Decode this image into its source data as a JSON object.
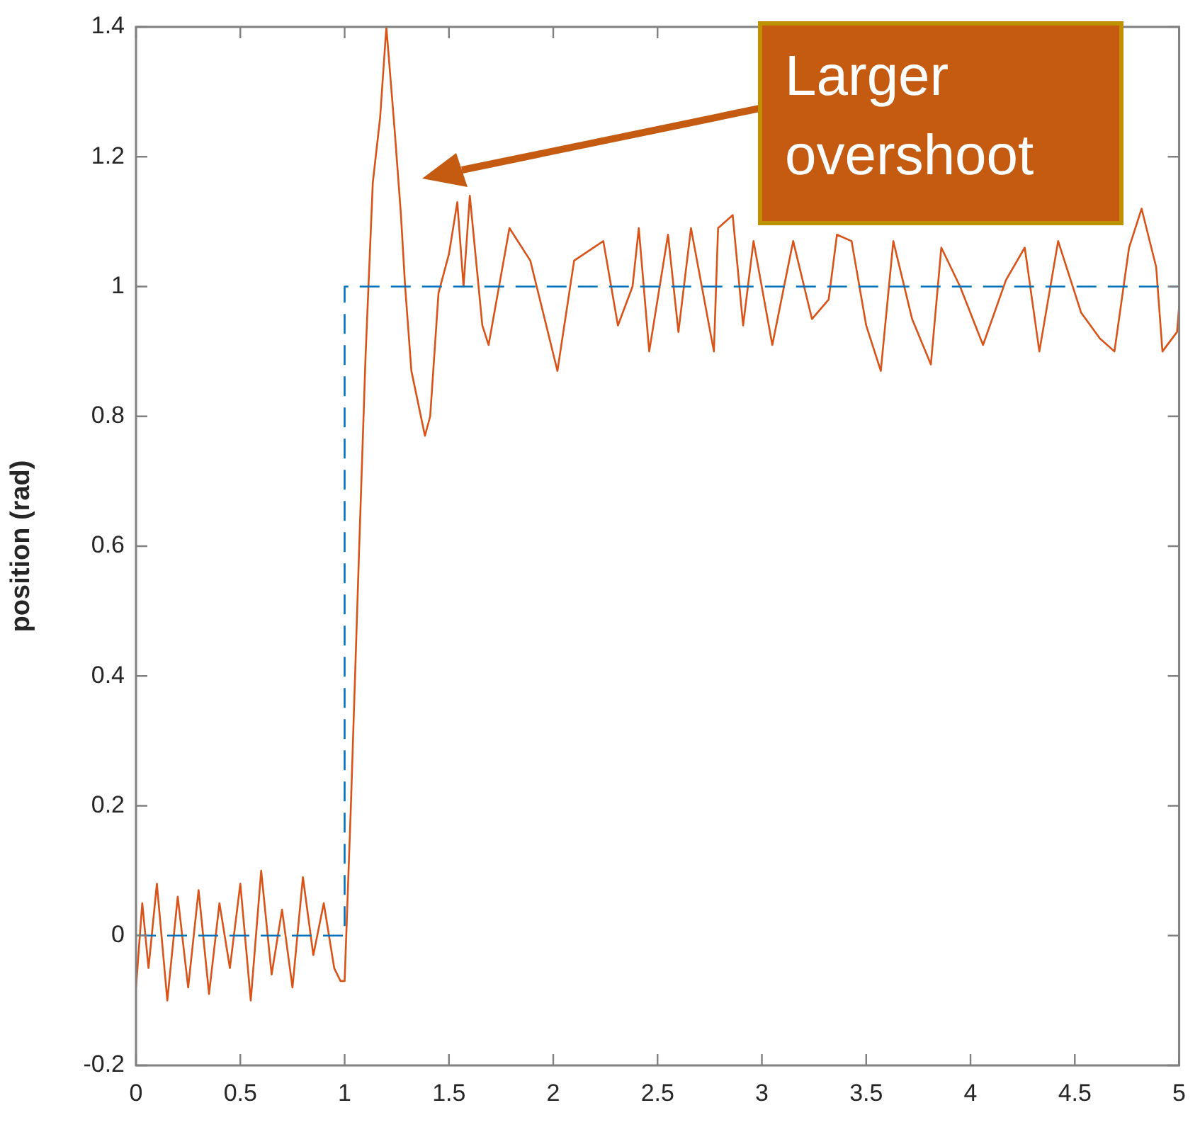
{
  "chart_data": {
    "type": "line",
    "ylabel": "position (rad)",
    "xlim": [
      0,
      5
    ],
    "xticks": [
      0,
      0.5,
      1,
      1.5,
      2,
      2.5,
      3,
      3.5,
      4,
      4.5,
      5
    ],
    "ylim": [
      -0.2,
      1.4
    ],
    "yticks": [
      -0.2,
      0,
      0.2,
      0.4,
      0.6,
      0.8,
      1,
      1.2,
      1.4
    ],
    "grid": false,
    "legend": false,
    "marker": "none",
    "annotations": [
      "Larger overshoot"
    ],
    "series": [
      {
        "color": "#0072bd",
        "line_style": "dashed",
        "x": [
          0,
          1,
          1,
          5
        ],
        "values": [
          0,
          0,
          1,
          1
        ]
      },
      {
        "color": "#d95319",
        "line_style": "solid",
        "x": [
          0,
          0.03,
          0.06,
          0.1,
          0.15,
          0.2,
          0.25,
          0.3,
          0.35,
          0.4,
          0.45,
          0.5,
          0.55,
          0.6,
          0.65,
          0.7,
          0.75,
          0.8,
          0.85,
          0.9,
          0.95,
          0.98,
          1.0,
          1.03,
          1.05,
          1.07,
          1.1,
          1.135,
          1.17,
          1.2,
          1.24,
          1.27,
          1.29,
          1.32,
          1.385,
          1.41,
          1.45,
          1.5,
          1.54,
          1.57,
          1.6,
          1.66,
          1.69,
          1.79,
          1.89,
          2.02,
          2.1,
          2.24,
          2.31,
          2.38,
          2.41,
          2.46,
          2.55,
          2.6,
          2.66,
          2.77,
          2.79,
          2.86,
          2.91,
          2.96,
          3.05,
          3.15,
          3.24,
          3.32,
          3.36,
          3.43,
          3.5,
          3.57,
          3.63,
          3.72,
          3.81,
          3.86,
          3.95,
          4.06,
          4.17,
          4.26,
          4.33,
          4.42,
          4.53,
          4.62,
          4.69,
          4.76,
          4.82,
          4.89,
          4.92,
          4.99,
          5
        ],
        "values": [
          -0.08,
          0.05,
          -0.05,
          0.08,
          -0.1,
          0.06,
          -0.08,
          0.07,
          -0.09,
          0.05,
          -0.05,
          0.08,
          -0.1,
          0.1,
          -0.06,
          0.04,
          -0.08,
          0.09,
          -0.03,
          0.05,
          -0.05,
          -0.07,
          -0.07,
          0.2,
          0.4,
          0.6,
          0.89,
          1.16,
          1.26,
          1.4,
          1.24,
          1.11,
          1.0,
          0.87,
          0.77,
          0.8,
          0.99,
          1.05,
          1.13,
          1.0,
          1.14,
          0.94,
          0.91,
          1.09,
          1.04,
          0.87,
          1.04,
          1.07,
          0.94,
          1.0,
          1.09,
          0.9,
          1.08,
          0.93,
          1.09,
          0.9,
          1.09,
          1.11,
          0.94,
          1.07,
          0.91,
          1.07,
          0.95,
          0.98,
          1.08,
          1.07,
          0.94,
          0.87,
          1.07,
          0.95,
          0.88,
          1.06,
          1.0,
          0.91,
          1.01,
          1.06,
          0.9,
          1.07,
          0.96,
          0.92,
          0.9,
          1.06,
          1.12,
          1.03,
          0.9,
          0.93,
          0.97
        ]
      }
    ]
  }
}
